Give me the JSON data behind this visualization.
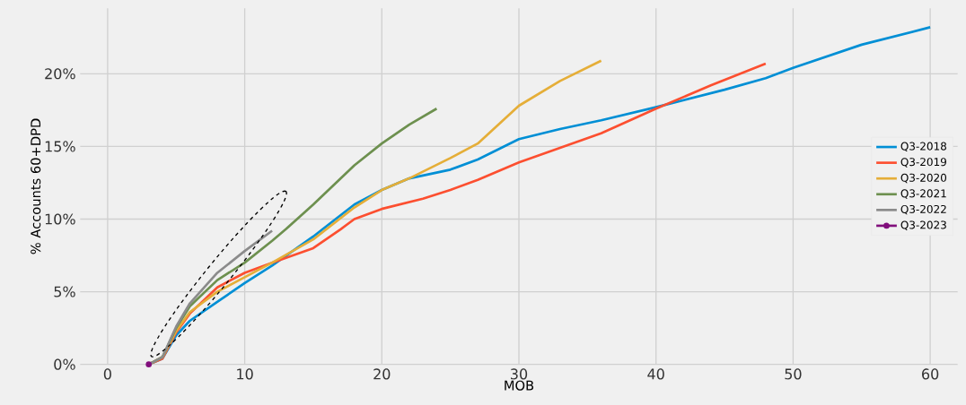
{
  "chart_data": {
    "type": "line",
    "xlabel": "MOB",
    "ylabel": "% Accounts 60+DPD",
    "xlim": [
      -2,
      62
    ],
    "ylim": [
      0,
      24.5
    ],
    "xticks": [
      0,
      10,
      20,
      30,
      40,
      50,
      60
    ],
    "yticks": [
      {
        "value": 0,
        "label": "0%"
      },
      {
        "value": 5,
        "label": "5%"
      },
      {
        "value": 10,
        "label": "10%"
      },
      {
        "value": 15,
        "label": "15%"
      },
      {
        "value": 20,
        "label": "20%"
      }
    ],
    "grid": true,
    "legend": "right",
    "line_style": "solid",
    "marker": "none",
    "series": [
      {
        "name": "Q3-2018",
        "color": "#008fd5",
        "x": [
          3,
          4,
          5,
          6,
          8,
          10,
          12,
          15,
          18,
          20,
          22,
          25,
          27,
          30,
          33,
          36,
          40,
          45,
          48,
          50,
          55,
          60
        ],
        "values": [
          0,
          0.4,
          2.0,
          3.0,
          4.3,
          5.6,
          6.8,
          8.8,
          11.0,
          12.0,
          12.8,
          13.4,
          14.1,
          15.5,
          16.2,
          16.8,
          17.7,
          18.9,
          19.7,
          20.4,
          22.0,
          23.2
        ]
      },
      {
        "name": "Q3-2019",
        "color": "#fc4f30",
        "x": [
          3,
          4,
          5,
          6,
          8,
          10,
          12,
          15,
          17,
          18,
          20,
          23,
          25,
          27,
          30,
          33,
          36,
          40,
          44,
          48
        ],
        "values": [
          0,
          0.4,
          2.2,
          3.5,
          5.3,
          6.3,
          7.0,
          8.0,
          9.3,
          10.0,
          10.7,
          11.4,
          12.0,
          12.7,
          13.9,
          14.9,
          15.9,
          17.6,
          19.2,
          20.7
        ]
      },
      {
        "name": "Q3-2020",
        "color": "#e5ae38",
        "x": [
          3,
          4,
          5,
          6,
          8,
          10,
          12,
          15,
          18,
          20,
          22,
          25,
          27,
          30,
          33,
          36
        ],
        "values": [
          0,
          0.5,
          2.3,
          3.6,
          5.0,
          6.0,
          7.0,
          8.6,
          10.8,
          12.0,
          12.8,
          14.2,
          15.2,
          17.8,
          19.5,
          20.9
        ]
      },
      {
        "name": "Q3-2021",
        "color": "#6d904f",
        "x": [
          3,
          4,
          5,
          6,
          8,
          10,
          12,
          13,
          15,
          18,
          20,
          22,
          24
        ],
        "values": [
          0,
          0.5,
          2.5,
          4.0,
          5.8,
          7.0,
          8.5,
          9.3,
          11.0,
          13.7,
          15.2,
          16.5,
          17.6
        ]
      },
      {
        "name": "Q3-2022",
        "color": "#8b8b8b",
        "x": [
          3,
          4,
          5,
          6,
          8,
          10,
          12
        ],
        "values": [
          0,
          0.5,
          2.6,
          4.2,
          6.3,
          7.8,
          9.2
        ]
      },
      {
        "name": "Q3-2023",
        "color": "#810f7c",
        "x": [
          3
        ],
        "values": [
          0
        ]
      }
    ]
  }
}
